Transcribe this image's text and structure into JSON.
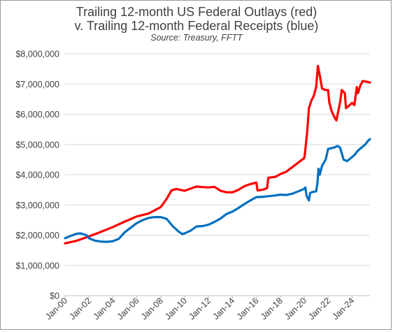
{
  "chart_data": {
    "type": "line",
    "title_lines": [
      "Trailing 12-month US Federal Outlays (red)",
      "v. Trailing 12-month Federal Receipts (blue)"
    ],
    "subtitle": "Source: Treasury, FFTT",
    "xlabel": "",
    "ylabel": "",
    "ylim": [
      0,
      8000000
    ],
    "xlim": [
      2000.0,
      2025.5
    ],
    "y_ticks": [
      0,
      1000000,
      2000000,
      3000000,
      4000000,
      5000000,
      6000000,
      7000000,
      8000000
    ],
    "y_tick_labels": [
      "$0",
      "$1,000,000",
      "$2,000,000",
      "$3,000,000",
      "$4,000,000",
      "$5,000,000",
      "$6,000,000",
      "$7,000,000",
      "$8,000,000"
    ],
    "x_ticks": [
      2000,
      2002,
      2004,
      2006,
      2008,
      2010,
      2012,
      2014,
      2016,
      2018,
      2020,
      2022,
      2024
    ],
    "x_tick_labels": [
      "Jan-00",
      "Jan-02",
      "Jan-04",
      "Jan-06",
      "Jan-08",
      "Jan-10",
      "Jan-12",
      "Jan-14",
      "Jan-16",
      "Jan-18",
      "Jan-20",
      "Jan-22",
      "Jan-24"
    ],
    "grid": true,
    "legend": "none",
    "series": [
      {
        "color": "#ff0000",
        "points": [
          [
            2000.0,
            1730000
          ],
          [
            2001.0,
            1820000
          ],
          [
            2002.0,
            1960000
          ],
          [
            2003.0,
            2110000
          ],
          [
            2004.0,
            2270000
          ],
          [
            2005.0,
            2450000
          ],
          [
            2006.0,
            2620000
          ],
          [
            2007.0,
            2720000
          ],
          [
            2008.0,
            2930000
          ],
          [
            2008.5,
            3200000
          ],
          [
            2008.9,
            3480000
          ],
          [
            2009.3,
            3530000
          ],
          [
            2010.0,
            3470000
          ],
          [
            2011.0,
            3610000
          ],
          [
            2011.5,
            3590000
          ],
          [
            2012.0,
            3580000
          ],
          [
            2012.5,
            3600000
          ],
          [
            2013.0,
            3470000
          ],
          [
            2013.5,
            3420000
          ],
          [
            2014.0,
            3420000
          ],
          [
            2014.5,
            3500000
          ],
          [
            2015.0,
            3620000
          ],
          [
            2015.5,
            3690000
          ],
          [
            2016.0,
            3740000
          ],
          [
            2016.1,
            3480000
          ],
          [
            2016.6,
            3510000
          ],
          [
            2016.9,
            3560000
          ],
          [
            2017.0,
            3900000
          ],
          [
            2017.6,
            3930000
          ],
          [
            2018.0,
            4020000
          ],
          [
            2018.5,
            4100000
          ],
          [
            2019.0,
            4250000
          ],
          [
            2019.5,
            4400000
          ],
          [
            2020.0,
            4550000
          ],
          [
            2020.05,
            4650000
          ],
          [
            2020.25,
            5400000
          ],
          [
            2020.4,
            6200000
          ],
          [
            2020.6,
            6450000
          ],
          [
            2020.8,
            6600000
          ],
          [
            2021.0,
            6900000
          ],
          [
            2021.15,
            7600000
          ],
          [
            2021.3,
            7300000
          ],
          [
            2021.5,
            6850000
          ],
          [
            2021.8,
            6800000
          ],
          [
            2022.0,
            6800000
          ],
          [
            2022.1,
            6400000
          ],
          [
            2022.3,
            6100000
          ],
          [
            2022.6,
            5850000
          ],
          [
            2022.7,
            5800000
          ],
          [
            2023.0,
            6400000
          ],
          [
            2023.15,
            6800000
          ],
          [
            2023.4,
            6700000
          ],
          [
            2023.5,
            6200000
          ],
          [
            2023.8,
            6300000
          ],
          [
            2024.0,
            6380000
          ],
          [
            2024.2,
            6300000
          ],
          [
            2024.4,
            6900000
          ],
          [
            2024.5,
            6700000
          ],
          [
            2024.7,
            6950000
          ],
          [
            2024.9,
            7100000
          ],
          [
            2025.2,
            7080000
          ],
          [
            2025.5,
            7050000
          ]
        ]
      },
      {
        "color": "#0070c0",
        "points": [
          [
            2000.0,
            1900000
          ],
          [
            2000.5,
            1980000
          ],
          [
            2001.0,
            2050000
          ],
          [
            2001.3,
            2060000
          ],
          [
            2001.8,
            2000000
          ],
          [
            2002.0,
            1900000
          ],
          [
            2002.5,
            1820000
          ],
          [
            2003.0,
            1790000
          ],
          [
            2003.5,
            1780000
          ],
          [
            2004.0,
            1800000
          ],
          [
            2004.5,
            1880000
          ],
          [
            2005.0,
            2100000
          ],
          [
            2005.5,
            2250000
          ],
          [
            2006.0,
            2400000
          ],
          [
            2006.5,
            2500000
          ],
          [
            2007.0,
            2570000
          ],
          [
            2007.5,
            2600000
          ],
          [
            2008.0,
            2600000
          ],
          [
            2008.5,
            2540000
          ],
          [
            2009.0,
            2300000
          ],
          [
            2009.5,
            2120000
          ],
          [
            2009.8,
            2040000
          ],
          [
            2010.0,
            2060000
          ],
          [
            2010.5,
            2150000
          ],
          [
            2011.0,
            2290000
          ],
          [
            2011.5,
            2300000
          ],
          [
            2012.0,
            2350000
          ],
          [
            2012.5,
            2440000
          ],
          [
            2013.0,
            2550000
          ],
          [
            2013.5,
            2700000
          ],
          [
            2014.0,
            2780000
          ],
          [
            2014.5,
            2900000
          ],
          [
            2015.0,
            3030000
          ],
          [
            2015.5,
            3150000
          ],
          [
            2016.0,
            3260000
          ],
          [
            2016.5,
            3270000
          ],
          [
            2017.0,
            3290000
          ],
          [
            2017.5,
            3310000
          ],
          [
            2018.0,
            3340000
          ],
          [
            2018.5,
            3330000
          ],
          [
            2019.0,
            3370000
          ],
          [
            2019.5,
            3450000
          ],
          [
            2020.0,
            3530000
          ],
          [
            2020.1,
            3580000
          ],
          [
            2020.2,
            3300000
          ],
          [
            2020.4,
            3150000
          ],
          [
            2020.5,
            3400000
          ],
          [
            2020.7,
            3430000
          ],
          [
            2021.0,
            3450000
          ],
          [
            2021.1,
            3700000
          ],
          [
            2021.2,
            4200000
          ],
          [
            2021.3,
            4000000
          ],
          [
            2021.5,
            4300000
          ],
          [
            2021.8,
            4500000
          ],
          [
            2022.0,
            4850000
          ],
          [
            2022.5,
            4900000
          ],
          [
            2022.8,
            4950000
          ],
          [
            2023.0,
            4900000
          ],
          [
            2023.3,
            4500000
          ],
          [
            2023.6,
            4450000
          ],
          [
            2023.9,
            4550000
          ],
          [
            2024.2,
            4650000
          ],
          [
            2024.5,
            4800000
          ],
          [
            2024.8,
            4900000
          ],
          [
            2025.1,
            5000000
          ],
          [
            2025.3,
            5100000
          ],
          [
            2025.5,
            5180000
          ]
        ]
      }
    ]
  }
}
